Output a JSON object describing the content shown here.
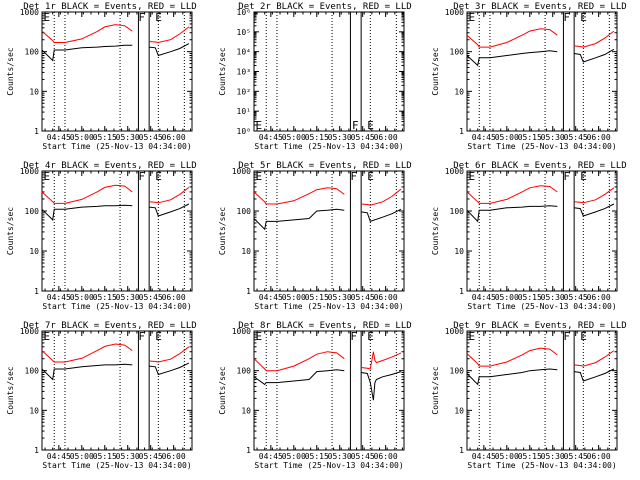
{
  "figure": {
    "x_tick_labels": [
      "04:45",
      "05:00",
      "05:15",
      "05:30",
      "05:45",
      "06:00"
    ],
    "x_ticks_hours": [
      4.75,
      5.0,
      5.25,
      5.5,
      5.75,
      6.0
    ],
    "xlabel": "Start Time (25-Nov-13 04:34:00)",
    "ylabel": "Counts/sec",
    "colors": {
      "events": "#000000",
      "lld": "#ff0000"
    }
  },
  "chart_data": [
    {
      "type": "line",
      "panel": "1r",
      "title": "Det 1r BLACK = Events, RED = LLD",
      "xlim": [
        "04:34",
        "06:12"
      ],
      "ylim": [
        1,
        1000
      ],
      "yscale": "log",
      "y_tick_labels": [
        "1",
        "10",
        "100",
        "1000"
      ],
      "annotations": [
        {
          "text": "E",
          "x": "04:35",
          "y": 1000
        },
        {
          "text": "F",
          "x": "05:37",
          "y": 1000
        },
        {
          "text": "E",
          "x": "05:48",
          "y": 1000
        }
      ],
      "solid_vlines": [
        "05:37",
        "05:44"
      ],
      "dotted_vlines": [
        "04:42",
        "04:49",
        "05:25",
        "05:50",
        "06:07"
      ],
      "x": [
        "04:34",
        "04:41",
        "04:42",
        "04:49",
        "05:00",
        "05:10",
        "05:15",
        "05:22",
        "05:28",
        "05:33",
        "05:37",
        "05:44",
        "05:48",
        "05:50",
        "05:58",
        "06:04",
        "06:10"
      ],
      "series": [
        {
          "name": "Events",
          "values": [
            110,
            60,
            110,
            110,
            125,
            130,
            135,
            138,
            145,
            145,
            null,
            130,
            125,
            80,
            100,
            120,
            160
          ]
        },
        {
          "name": "LLD",
          "values": [
            330,
            190,
            170,
            170,
            210,
            320,
            420,
            480,
            450,
            330,
            null,
            180,
            175,
            170,
            200,
            280,
            420
          ]
        }
      ]
    },
    {
      "type": "line",
      "panel": "2r",
      "title": "Det 2r BLACK = Events, RED = LLD",
      "xlim": [
        "04:34",
        "06:12"
      ],
      "ylim": [
        1,
        1000000
      ],
      "yscale": "log",
      "y_tick_labels": [
        "10⁰",
        "10¹",
        "10²",
        "10³",
        "10⁴",
        "10⁵",
        "10⁶"
      ],
      "annotations": [
        {
          "text": "E",
          "x": "04:35",
          "y": 1
        },
        {
          "text": "F",
          "x": "05:38",
          "y": 1
        },
        {
          "text": "E",
          "x": "05:48",
          "y": 1
        }
      ],
      "solid_vlines": [
        "05:37",
        "05:44"
      ],
      "dotted_vlines": [
        "04:42",
        "04:49",
        "05:25",
        "05:50",
        "06:07"
      ],
      "x": [],
      "series": [
        {
          "name": "Events",
          "values": []
        },
        {
          "name": "LLD",
          "values": []
        }
      ]
    },
    {
      "type": "line",
      "panel": "3r",
      "title": "Det 3r BLACK = Events, RED = LLD",
      "xlim": [
        "04:34",
        "06:12"
      ],
      "ylim": [
        1,
        1000
      ],
      "yscale": "log",
      "y_tick_labels": [
        "1",
        "10",
        "100",
        "1000"
      ],
      "annotations": [
        {
          "text": "E",
          "x": "04:35",
          "y": 1000
        },
        {
          "text": "F",
          "x": "05:37",
          "y": 1000
        },
        {
          "text": "E",
          "x": "05:48",
          "y": 1000
        }
      ],
      "solid_vlines": [
        "05:37",
        "05:44"
      ],
      "dotted_vlines": [
        "04:42",
        "04:49",
        "05:25",
        "05:50",
        "06:07"
      ],
      "x": [
        "04:34",
        "04:41",
        "04:42",
        "04:49",
        "05:00",
        "05:10",
        "05:15",
        "05:22",
        "05:28",
        "05:33",
        "05:37",
        "05:44",
        "05:48",
        "05:50",
        "05:58",
        "06:04",
        "06:10"
      ],
      "series": [
        {
          "name": "Events",
          "values": [
            80,
            45,
            70,
            70,
            80,
            90,
            95,
            100,
            105,
            100,
            null,
            90,
            85,
            55,
            70,
            85,
            115
          ]
        },
        {
          "name": "LLD",
          "values": [
            260,
            150,
            130,
            130,
            170,
            260,
            330,
            380,
            360,
            260,
            null,
            140,
            135,
            130,
            160,
            220,
            330
          ]
        }
      ]
    },
    {
      "type": "line",
      "panel": "4r",
      "title": "Det 4r BLACK = Events, RED = LLD",
      "xlim": [
        "04:34",
        "06:12"
      ],
      "ylim": [
        1,
        1000
      ],
      "yscale": "log",
      "y_tick_labels": [
        "1",
        "10",
        "100",
        "1000"
      ],
      "annotations": [
        {
          "text": "E",
          "x": "04:35",
          "y": 1000
        },
        {
          "text": "F",
          "x": "05:37",
          "y": 1000
        },
        {
          "text": "E",
          "x": "05:48",
          "y": 1000
        }
      ],
      "solid_vlines": [
        "05:37",
        "05:44"
      ],
      "dotted_vlines": [
        "04:42",
        "04:49",
        "05:25",
        "05:50",
        "06:07"
      ],
      "x": [
        "04:34",
        "04:41",
        "04:42",
        "04:49",
        "05:00",
        "05:10",
        "05:15",
        "05:22",
        "05:28",
        "05:33",
        "05:37",
        "05:44",
        "05:48",
        "05:50",
        "05:58",
        "06:04",
        "06:10"
      ],
      "series": [
        {
          "name": "Events",
          "values": [
            110,
            60,
            110,
            110,
            125,
            130,
            135,
            135,
            140,
            135,
            null,
            125,
            120,
            75,
            95,
            115,
            150
          ]
        },
        {
          "name": "LLD",
          "values": [
            300,
            170,
            155,
            155,
            195,
            300,
            390,
            440,
            420,
            300,
            null,
            170,
            165,
            160,
            190,
            260,
            390
          ]
        }
      ]
    },
    {
      "type": "line",
      "panel": "5r",
      "title": "Det 5r BLACK = Events, RED = LLD",
      "xlim": [
        "04:34",
        "06:12"
      ],
      "ylim": [
        1,
        1000
      ],
      "yscale": "log",
      "y_tick_labels": [
        "1",
        "10",
        "100",
        "1000"
      ],
      "annotations": [
        {
          "text": "E",
          "x": "04:35",
          "y": 1000
        },
        {
          "text": "F",
          "x": "05:37",
          "y": 1000
        },
        {
          "text": "E",
          "x": "05:48",
          "y": 1000
        }
      ],
      "solid_vlines": [
        "05:37",
        "05:44"
      ],
      "dotted_vlines": [
        "04:42",
        "04:49",
        "05:25",
        "05:50",
        "06:07"
      ],
      "x": [
        "04:34",
        "04:41",
        "04:42",
        "04:49",
        "05:00",
        "05:10",
        "05:15",
        "05:22",
        "05:28",
        "05:33",
        "05:37",
        "05:44",
        "05:48",
        "05:50",
        "05:58",
        "06:04",
        "06:10"
      ],
      "series": [
        {
          "name": "Events",
          "values": [
            65,
            35,
            55,
            55,
            60,
            65,
            100,
            105,
            110,
            105,
            null,
            95,
            90,
            55,
            70,
            85,
            110
          ]
        },
        {
          "name": "LLD",
          "values": [
            300,
            170,
            150,
            150,
            180,
            270,
            340,
            380,
            360,
            260,
            null,
            150,
            145,
            140,
            170,
            230,
            350
          ]
        }
      ]
    },
    {
      "type": "line",
      "panel": "6r",
      "title": "Det 6r BLACK = Events, RED = LLD",
      "xlim": [
        "04:34",
        "06:12"
      ],
      "ylim": [
        1,
        1000
      ],
      "yscale": "log",
      "y_tick_labels": [
        "1",
        "10",
        "100",
        "1000"
      ],
      "annotations": [
        {
          "text": "E",
          "x": "04:35",
          "y": 1000
        },
        {
          "text": "F",
          "x": "05:37",
          "y": 1000
        },
        {
          "text": "E",
          "x": "05:48",
          "y": 1000
        }
      ],
      "solid_vlines": [
        "05:37",
        "05:44"
      ],
      "dotted_vlines": [
        "04:42",
        "04:49",
        "05:25",
        "05:50",
        "06:07"
      ],
      "x": [
        "04:34",
        "04:41",
        "04:42",
        "04:49",
        "05:00",
        "05:10",
        "05:15",
        "05:22",
        "05:28",
        "05:33",
        "05:37",
        "05:44",
        "05:48",
        "05:50",
        "05:58",
        "06:04",
        "06:10"
      ],
      "series": [
        {
          "name": "Events",
          "values": [
            105,
            55,
            105,
            105,
            120,
            125,
            130,
            130,
            135,
            130,
            null,
            120,
            115,
            75,
            95,
            115,
            150
          ]
        },
        {
          "name": "LLD",
          "values": [
            300,
            170,
            155,
            155,
            195,
            300,
            380,
            430,
            410,
            300,
            null,
            170,
            165,
            160,
            190,
            260,
            380
          ]
        }
      ]
    },
    {
      "type": "line",
      "panel": "7r",
      "title": "Det 7r BLACK = Events, RED = LLD",
      "xlim": [
        "04:34",
        "06:12"
      ],
      "ylim": [
        1,
        1000
      ],
      "yscale": "log",
      "y_tick_labels": [
        "1",
        "10",
        "100",
        "1000"
      ],
      "annotations": [
        {
          "text": "E",
          "x": "04:35",
          "y": 1000
        },
        {
          "text": "F",
          "x": "05:37",
          "y": 1000
        },
        {
          "text": "E",
          "x": "05:48",
          "y": 1000
        }
      ],
      "solid_vlines": [
        "05:37",
        "05:44"
      ],
      "dotted_vlines": [
        "04:42",
        "04:49",
        "05:25",
        "05:50",
        "06:07"
      ],
      "x": [
        "04:34",
        "04:41",
        "04:42",
        "04:49",
        "05:00",
        "05:10",
        "05:15",
        "05:22",
        "05:28",
        "05:33",
        "05:37",
        "05:44",
        "05:48",
        "05:50",
        "05:58",
        "06:04",
        "06:10"
      ],
      "series": [
        {
          "name": "Events",
          "values": [
            110,
            60,
            110,
            110,
            125,
            135,
            140,
            140,
            145,
            140,
            null,
            130,
            125,
            80,
            100,
            120,
            155
          ]
        },
        {
          "name": "LLD",
          "values": [
            320,
            180,
            165,
            165,
            205,
            320,
            410,
            470,
            440,
            320,
            null,
            175,
            170,
            165,
            195,
            270,
            400
          ]
        }
      ]
    },
    {
      "type": "line",
      "panel": "8r",
      "title": "Det 8r BLACK = Events, RED = LLD",
      "xlim": [
        "04:34",
        "06:12"
      ],
      "ylim": [
        1,
        1000
      ],
      "yscale": "log",
      "y_tick_labels": [
        "1",
        "10",
        "100",
        "1000"
      ],
      "annotations": [
        {
          "text": "E",
          "x": "04:35",
          "y": 1000
        },
        {
          "text": "F",
          "x": "05:37",
          "y": 1000
        },
        {
          "text": "E",
          "x": "05:48",
          "y": 1000
        }
      ],
      "solid_vlines": [
        "05:37",
        "05:44"
      ],
      "dotted_vlines": [
        "04:42",
        "04:49",
        "05:25",
        "05:50",
        "06:07"
      ],
      "x": [
        "04:34",
        "04:41",
        "04:42",
        "04:49",
        "05:00",
        "05:10",
        "05:15",
        "05:22",
        "05:28",
        "05:33",
        "05:37",
        "05:44",
        "05:48",
        "05:50",
        "05:52",
        "05:53",
        "05:54",
        "05:58",
        "06:04",
        "06:10"
      ],
      "series": [
        {
          "name": "Events",
          "values": [
            70,
            45,
            50,
            50,
            55,
            60,
            95,
            100,
            105,
            100,
            null,
            90,
            85,
            50,
            18,
            50,
            60,
            70,
            80,
            95
          ]
        },
        {
          "name": "LLD",
          "values": [
            200,
            110,
            100,
            100,
            130,
            200,
            260,
            300,
            280,
            200,
            null,
            120,
            115,
            110,
            300,
            180,
            160,
            180,
            220,
            280
          ]
        }
      ]
    },
    {
      "type": "line",
      "panel": "9r",
      "title": "Det 9r BLACK = Events, RED = LLD",
      "xlim": [
        "04:34",
        "06:12"
      ],
      "ylim": [
        1,
        1000
      ],
      "yscale": "log",
      "y_tick_labels": [
        "1",
        "10",
        "100",
        "1000"
      ],
      "annotations": [
        {
          "text": "E",
          "x": "04:35",
          "y": 1000
        },
        {
          "text": "F",
          "x": "05:37",
          "y": 1000
        },
        {
          "text": "E",
          "x": "05:48",
          "y": 1000
        }
      ],
      "solid_vlines": [
        "05:37",
        "05:44"
      ],
      "dotted_vlines": [
        "04:42",
        "04:49",
        "05:25",
        "05:50",
        "06:07"
      ],
      "x": [
        "04:34",
        "04:41",
        "04:42",
        "04:49",
        "05:00",
        "05:10",
        "05:15",
        "05:22",
        "05:28",
        "05:33",
        "05:37",
        "05:44",
        "05:48",
        "05:50",
        "05:58",
        "06:04",
        "06:10"
      ],
      "series": [
        {
          "name": "Events",
          "values": [
            85,
            45,
            70,
            70,
            80,
            90,
            100,
            105,
            110,
            105,
            null,
            95,
            90,
            55,
            70,
            85,
            110
          ]
        },
        {
          "name": "LLD",
          "values": [
            270,
            150,
            130,
            130,
            165,
            250,
            320,
            370,
            350,
            250,
            null,
            140,
            135,
            130,
            160,
            220,
            320
          ]
        }
      ]
    }
  ]
}
